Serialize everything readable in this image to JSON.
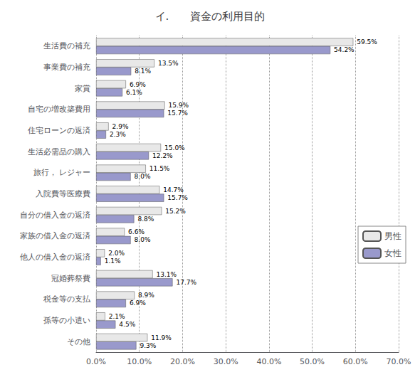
{
  "chart_data": {
    "type": "bar",
    "orientation": "horizontal",
    "title": "イ.　　資金の利用目的",
    "categories": [
      "生活費の補充",
      "事業費の補充",
      "家賞",
      "自宅の増改築費用",
      "住宅ローンの返済",
      "生活必需品の購入",
      "旅行， レジャー",
      "入院費等医療費",
      "自分の借入金の返済",
      "家族の借入金の返済",
      "他人の借入金の返済",
      "冠婚葬祭費",
      "税金等の支払",
      "孫等の小遣い",
      "その他"
    ],
    "series": [
      {
        "name": "男性",
        "color": "#e8e8e8",
        "values": [
          59.5,
          13.5,
          6.9,
          15.9,
          2.9,
          15.0,
          11.5,
          14.7,
          15.2,
          6.6,
          2.0,
          13.1,
          8.9,
          2.1,
          11.9
        ],
        "value_labels": [
          "59.5%",
          "13.5%",
          "6.9%",
          "15.9%",
          "2.9%",
          "15.0%",
          "11.5%",
          "14.7%",
          "15.2%",
          "6.6%",
          "2.0%",
          "13.1%",
          "8.9%",
          "2.1%",
          "11.9%"
        ]
      },
      {
        "name": "女性",
        "color": "#9999cc",
        "values": [
          54.2,
          8.1,
          6.1,
          15.7,
          2.3,
          12.2,
          8.0,
          15.7,
          8.8,
          8.0,
          1.1,
          17.7,
          6.9,
          4.5,
          9.3
        ],
        "value_labels": [
          "54.2%",
          "8.1%",
          "6.1%",
          "15.7%",
          "2.3%",
          "12.2%",
          "8.0%",
          "15.7%",
          "8.8%",
          "8.0%",
          "1.1%",
          "17.7%",
          "6.9%",
          "4.5%",
          "9.3%"
        ]
      }
    ],
    "xlim": [
      0,
      70
    ],
    "xticks": [
      {
        "value": 0,
        "label": "0.0%"
      },
      {
        "value": 10,
        "label": "10.0%"
      },
      {
        "value": 20,
        "label": "20.0%"
      },
      {
        "value": 30,
        "label": "30.0%"
      },
      {
        "value": 40,
        "label": "40.0%"
      },
      {
        "value": 50,
        "label": "50.0%"
      },
      {
        "value": 60,
        "label": "60.0%"
      },
      {
        "value": 70,
        "label": "70.0%"
      }
    ],
    "grid": true,
    "data_labels": true,
    "legend": "lower right"
  }
}
